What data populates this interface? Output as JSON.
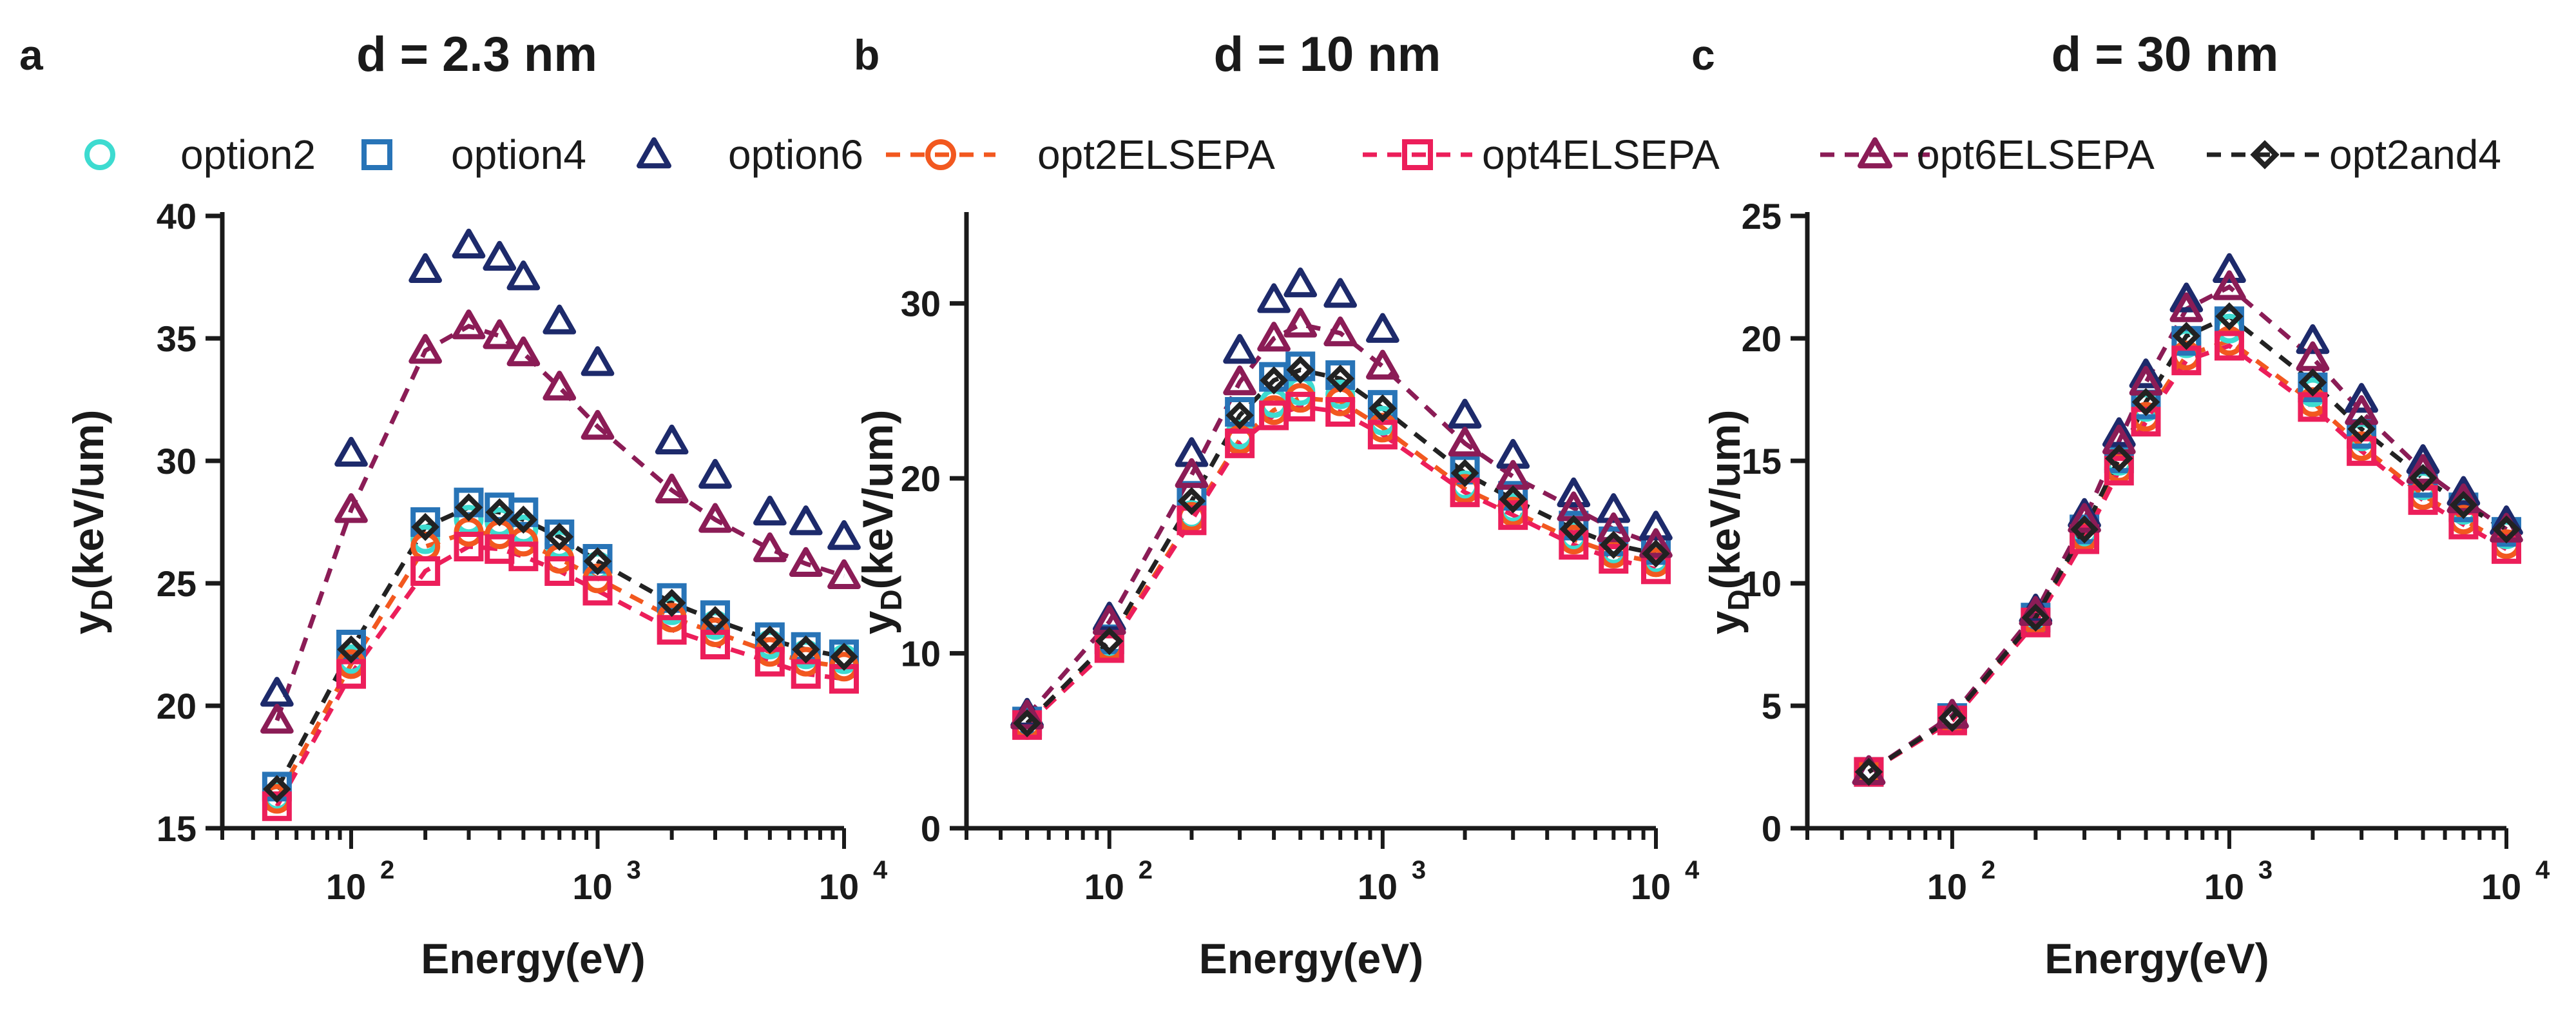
{
  "figure": {
    "panel_letters": [
      "a",
      "b",
      "c"
    ]
  },
  "legend": {
    "items": [
      {
        "key": "option2",
        "label": "option2",
        "marker": "circle",
        "color": "#3ddbd0",
        "dashed": false
      },
      {
        "key": "option4",
        "label": "option4",
        "marker": "square",
        "color": "#2874b7",
        "dashed": false
      },
      {
        "key": "option6",
        "label": "option6",
        "marker": "triangle",
        "color": "#1d2a6b",
        "dashed": false
      },
      {
        "key": "opt2ELSEPA",
        "label": "opt2ELSEPA",
        "marker": "circle",
        "color": "#f2581f",
        "dashed": true
      },
      {
        "key": "opt4ELSEPA",
        "label": "opt4ELSEPA",
        "marker": "square",
        "color": "#ec1e5a",
        "dashed": true
      },
      {
        "key": "opt6ELSEPA",
        "label": "opt6ELSEPA",
        "marker": "triangle",
        "color": "#8b1c56",
        "dashed": true
      },
      {
        "key": "opt2and4",
        "label": "opt2and4",
        "marker": "diamond",
        "color": "#222222",
        "dashed": true
      }
    ]
  },
  "chart_data": [
    {
      "type": "scatter",
      "panel": "a",
      "title": "d = 2.3 nm",
      "xlabel": "Energy(eV)",
      "ylabel_main": "y",
      "ylabel_sub": "D",
      "ylabel_rest": "(keV/um)",
      "xscale": "log",
      "xlim": [
        30,
        10000
      ],
      "ylim": [
        15,
        40
      ],
      "yticks": [
        15,
        20,
        25,
        30,
        35,
        40
      ],
      "x_major_ticks": [
        100,
        1000,
        10000
      ],
      "x_tick_labels": [
        {
          "base": "10",
          "exp": "2"
        },
        {
          "base": "10",
          "exp": "3"
        },
        {
          "base": "10",
          "exp": "4"
        }
      ],
      "x": [
        50,
        100,
        200,
        300,
        400,
        500,
        700,
        1000,
        2000,
        3000,
        5000,
        7000,
        10000
      ],
      "series": [
        {
          "key": "option2",
          "values": [
            16.3,
            21.9,
            26.8,
            27.6,
            27.5,
            27.2,
            26.6,
            25.7,
            23.9,
            23.3,
            22.5,
            22.1,
            21.9
          ]
        },
        {
          "key": "option4",
          "values": [
            16.7,
            22.5,
            27.5,
            28.3,
            28.1,
            27.9,
            27.0,
            26.0,
            24.4,
            23.7,
            22.8,
            22.4,
            22.1
          ]
        },
        {
          "key": "option6",
          "values": [
            20.5,
            30.3,
            37.8,
            38.8,
            38.3,
            37.5,
            35.7,
            34.0,
            30.8,
            29.4,
            27.9,
            27.5,
            26.9
          ]
        },
        {
          "key": "opt2ELSEPA",
          "values": [
            16.2,
            21.7,
            26.5,
            27.1,
            27.0,
            26.7,
            26.0,
            25.2,
            23.6,
            23.0,
            22.2,
            21.8,
            21.6
          ]
        },
        {
          "key": "opt4ELSEPA",
          "values": [
            15.9,
            21.3,
            25.5,
            26.5,
            26.4,
            26.1,
            25.5,
            24.7,
            23.1,
            22.5,
            21.8,
            21.3,
            21.1
          ]
        },
        {
          "key": "opt6ELSEPA",
          "values": [
            19.4,
            28.0,
            34.5,
            35.5,
            35.1,
            34.4,
            33.0,
            31.4,
            28.8,
            27.6,
            26.4,
            25.8,
            25.3
          ]
        },
        {
          "key": "opt2and4",
          "values": [
            16.6,
            22.3,
            27.3,
            28.1,
            27.9,
            27.6,
            26.9,
            25.9,
            24.2,
            23.5,
            22.7,
            22.3,
            22.0
          ]
        }
      ]
    },
    {
      "type": "scatter",
      "panel": "b",
      "title": "d = 10 nm",
      "xlabel": "Energy(eV)",
      "ylabel_main": "y",
      "ylabel_sub": "D",
      "ylabel_rest": "(keV/um)",
      "xscale": "log",
      "xlim": [
        30,
        10000
      ],
      "ylim": [
        0,
        35
      ],
      "yticks": [
        0,
        10,
        20,
        30
      ],
      "x_major_ticks": [
        100,
        1000,
        10000
      ],
      "x_tick_labels": [
        {
          "base": "10",
          "exp": "2"
        },
        {
          "base": "10",
          "exp": "3"
        },
        {
          "base": "10",
          "exp": "4"
        }
      ],
      "x": [
        50,
        100,
        200,
        300,
        400,
        500,
        700,
        1000,
        2000,
        3000,
        5000,
        7000,
        10000
      ],
      "series": [
        {
          "key": "option2",
          "values": [
            5.9,
            10.5,
            17.9,
            22.5,
            24.3,
            25.0,
            24.8,
            23.3,
            19.6,
            18.3,
            16.7,
            15.9,
            15.4
          ]
        },
        {
          "key": "option4",
          "values": [
            6.1,
            10.8,
            19.0,
            23.8,
            25.8,
            26.4,
            25.9,
            24.2,
            20.5,
            19.0,
            17.3,
            16.4,
            15.9
          ]
        },
        {
          "key": "option6",
          "values": [
            6.5,
            12.0,
            21.4,
            27.3,
            30.2,
            31.1,
            30.5,
            28.5,
            23.6,
            21.3,
            19.1,
            18.2,
            17.2
          ]
        },
        {
          "key": "opt2ELSEPA",
          "values": [
            5.9,
            10.4,
            17.8,
            22.2,
            23.9,
            24.6,
            24.4,
            22.9,
            19.4,
            18.1,
            16.5,
            15.7,
            15.2
          ]
        },
        {
          "key": "opt4ELSEPA",
          "values": [
            5.9,
            10.3,
            17.6,
            22.0,
            23.6,
            24.1,
            23.8,
            22.5,
            19.2,
            17.9,
            16.2,
            15.4,
            14.8
          ]
        },
        {
          "key": "opt6ELSEPA",
          "values": [
            6.4,
            11.8,
            20.2,
            25.5,
            28.0,
            28.8,
            28.3,
            26.4,
            22.0,
            20.1,
            18.3,
            17.1,
            16.2
          ]
        },
        {
          "key": "opt2and4",
          "values": [
            6.0,
            10.7,
            18.7,
            23.6,
            25.6,
            26.2,
            25.7,
            24.0,
            20.3,
            18.8,
            17.1,
            16.2,
            15.7
          ]
        }
      ]
    },
    {
      "type": "scatter",
      "panel": "c",
      "title": "d = 30 nm",
      "xlabel": "Energy(eV)",
      "ylabel_main": "y",
      "ylabel_sub": "D",
      "ylabel_rest": "(keV/um)",
      "xscale": "log",
      "xlim": [
        30,
        10000
      ],
      "ylim": [
        0,
        25
      ],
      "yticks": [
        0,
        5,
        10,
        15,
        20,
        25
      ],
      "x_major_ticks": [
        100,
        1000,
        10000
      ],
      "x_tick_labels": [
        {
          "base": "10",
          "exp": "2"
        },
        {
          "base": "10",
          "exp": "3"
        },
        {
          "base": "10",
          "exp": "4"
        }
      ],
      "x": [
        50,
        100,
        200,
        300,
        400,
        500,
        700,
        1000,
        2000,
        3000,
        5000,
        7000,
        10000
      ],
      "series": [
        {
          "key": "option2",
          "values": [
            2.3,
            4.5,
            8.6,
            12.1,
            15.0,
            17.2,
            19.8,
            20.4,
            17.8,
            16.0,
            14.0,
            13.0,
            12.0
          ]
        },
        {
          "key": "option4",
          "values": [
            2.3,
            4.5,
            8.6,
            12.2,
            15.1,
            17.3,
            19.9,
            20.7,
            18.0,
            16.1,
            14.1,
            13.1,
            12.1
          ]
        },
        {
          "key": "option6",
          "values": [
            2.3,
            4.6,
            8.9,
            12.8,
            16.1,
            18.5,
            21.6,
            22.8,
            19.9,
            17.5,
            15.0,
            13.7,
            12.5
          ]
        },
        {
          "key": "opt2ELSEPA",
          "values": [
            2.3,
            4.4,
            8.5,
            11.9,
            14.7,
            16.8,
            19.3,
            19.9,
            17.4,
            15.6,
            13.6,
            12.6,
            11.6
          ]
        },
        {
          "key": "opt4ELSEPA",
          "values": [
            2.3,
            4.4,
            8.4,
            11.8,
            14.6,
            16.6,
            19.1,
            19.7,
            17.2,
            15.4,
            13.4,
            12.4,
            11.4
          ]
        },
        {
          "key": "opt6ELSEPA",
          "values": [
            2.3,
            4.6,
            8.8,
            12.6,
            15.8,
            18.2,
            21.2,
            22.1,
            19.2,
            17.0,
            14.6,
            13.4,
            12.2
          ]
        },
        {
          "key": "opt2and4",
          "values": [
            2.3,
            4.5,
            8.6,
            12.2,
            15.1,
            17.4,
            20.1,
            20.9,
            18.2,
            16.3,
            14.3,
            13.2,
            12.2
          ]
        }
      ]
    }
  ]
}
